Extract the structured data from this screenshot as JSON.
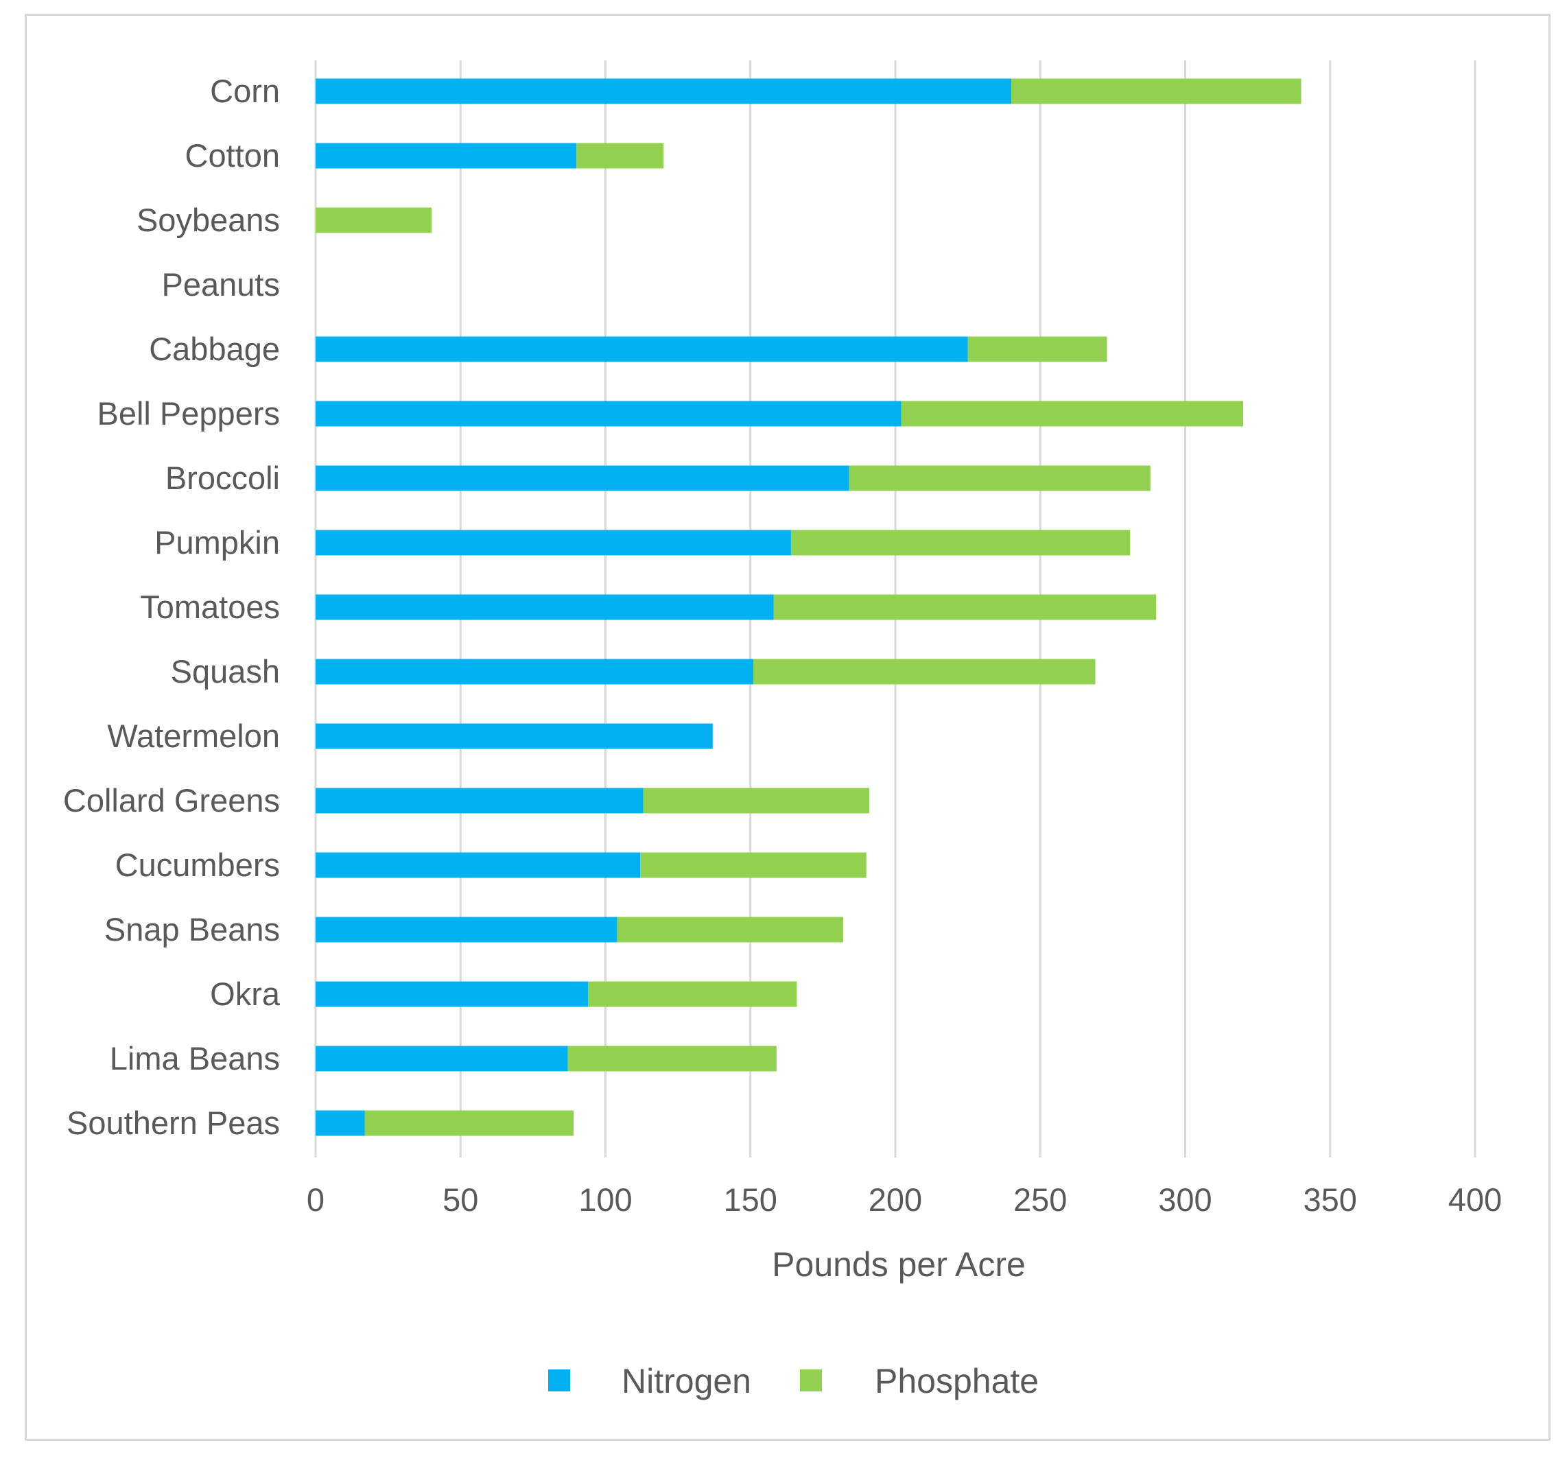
{
  "chart_data": {
    "type": "bar",
    "orientation": "horizontal",
    "stacked": true,
    "title": "",
    "xlabel": "Pounds per Acre",
    "ylabel": "",
    "xlim": [
      0,
      400
    ],
    "xticks": [
      0,
      50,
      100,
      150,
      200,
      250,
      300,
      350,
      400
    ],
    "xtick_labels": [
      "0",
      "50",
      "100",
      "150",
      "200",
      "250",
      "300",
      "350",
      "400"
    ],
    "grid": "vertical",
    "legend_position": "bottom",
    "categories": [
      "Corn",
      "Cotton",
      "Soybeans",
      "Peanuts",
      "Cabbage",
      "Bell Peppers",
      "Broccoli",
      "Pumpkin",
      "Tomatoes",
      "Squash",
      "Watermelon",
      "Collard Greens",
      "Cucumbers",
      "Snap Beans",
      "Okra",
      "Lima Beans",
      "Southern Peas"
    ],
    "series": [
      {
        "name": "Nitrogen",
        "color": "#00B0F0",
        "values": [
          240,
          90,
          0,
          0,
          225,
          202,
          184,
          164,
          158,
          151,
          137,
          113,
          112,
          104,
          94,
          87,
          17
        ]
      },
      {
        "name": "Phosphate",
        "color": "#92D050",
        "values": [
          100,
          30,
          40,
          0,
          48,
          118,
          104,
          117,
          132,
          118,
          0,
          78,
          78,
          78,
          72,
          72,
          72
        ]
      }
    ]
  },
  "colors": {
    "grid": "#d9d9d9",
    "text": "#595959",
    "frame": "#d6d6d6"
  }
}
